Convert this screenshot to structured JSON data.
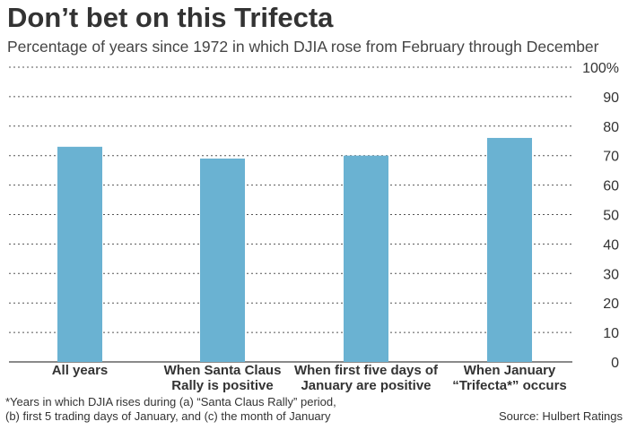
{
  "chart_data": {
    "type": "bar",
    "title": "Don’t bet on this Trifecta",
    "subtitle": "Percentage of years since 1972 in which DJIA rose from February through December",
    "categories": [
      [
        "All years"
      ],
      [
        "When Santa Claus",
        "Rally is positive"
      ],
      [
        "When first five days of",
        "January are positive"
      ],
      [
        "When January",
        "“Trifecta*” occurs"
      ]
    ],
    "values": [
      73,
      69,
      70,
      76
    ],
    "ylim": [
      0,
      100
    ],
    "yticks": [
      "0",
      "10",
      "20",
      "30",
      "40",
      "50",
      "60",
      "70",
      "80",
      "90",
      "100%"
    ],
    "grid": true,
    "bar_color": "#6ab2d2"
  },
  "footnote": [
    "*Years in which DJIA rises during (a) “Santa Claus Rally” period,",
    "(b) first 5 trading days of January, and (c) the month of January"
  ],
  "source": "Source: Hulbert Ratings"
}
